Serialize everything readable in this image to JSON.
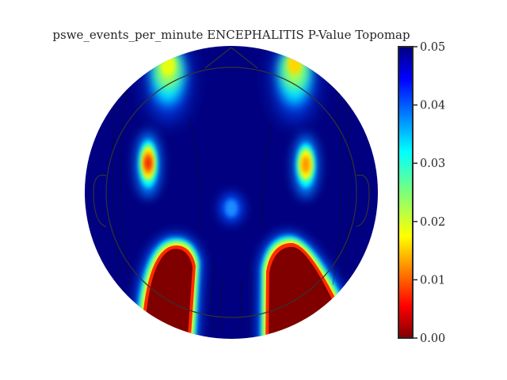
{
  "chart_data": {
    "type": "heatmap",
    "subtype": "scalp-topomap",
    "title": "pswe_events_per_minute ENCEPHALITIS P-Value Topomap",
    "xlabel": "",
    "ylabel": "",
    "colormap": "jet_r",
    "colorbar": {
      "range": [
        0.0,
        0.05
      ],
      "ticks": [
        0.0,
        0.01,
        0.02,
        0.03,
        0.04,
        0.05
      ],
      "tick_labels": [
        "0.00",
        "0.01",
        "0.02",
        "0.03",
        "0.04",
        "0.05"
      ],
      "placement": "right"
    },
    "background_value": 0.05,
    "regions": [
      {
        "name": "frontal-left",
        "min_p": 0.022
      },
      {
        "name": "frontal-right",
        "min_p": 0.018
      },
      {
        "name": "temporal-left",
        "min_p": 0.009
      },
      {
        "name": "temporal-right",
        "min_p": 0.011
      },
      {
        "name": "central-midline",
        "min_p": 0.042
      },
      {
        "name": "posterior-left",
        "min_p": 0.0
      },
      {
        "name": "posterior-right",
        "min_p": 0.0
      }
    ],
    "grid": false,
    "legend": "none"
  },
  "colors": {
    "title": "#262626",
    "head_outline": "#333333",
    "contour": "#111111"
  }
}
